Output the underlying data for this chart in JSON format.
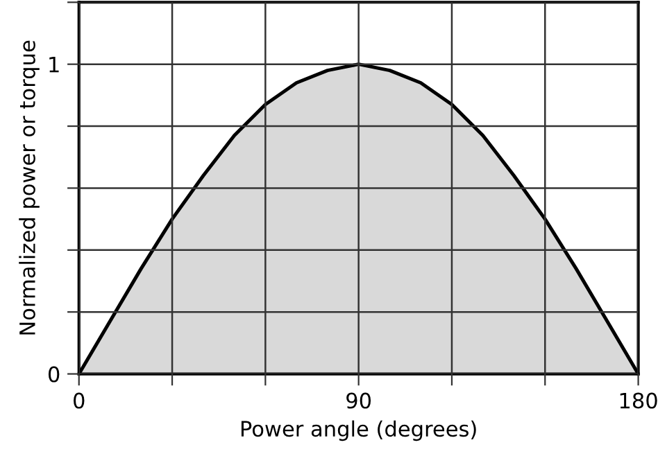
{
  "chart_data": {
    "type": "area",
    "xlabel": "Power angle (degrees)",
    "ylabel": "Normalized power or torque",
    "x": [
      0,
      10,
      20,
      30,
      40,
      50,
      60,
      70,
      80,
      90,
      100,
      110,
      120,
      130,
      140,
      150,
      160,
      170,
      180
    ],
    "series": [
      {
        "color": "#d9d9d9",
        "values": [
          0,
          0.17,
          0.34,
          0.5,
          0.64,
          0.77,
          0.87,
          0.94,
          0.98,
          1.0,
          0.98,
          0.94,
          0.87,
          0.77,
          0.64,
          0.5,
          0.34,
          0.17,
          0
        ]
      }
    ],
    "xlim": [
      0,
      180
    ],
    "ylim": [
      0,
      1.2
    ],
    "xticks": [
      0,
      {
        "value": 30,
        "label": null
      },
      {
        "value": 60,
        "label": null
      },
      90,
      {
        "value": 120,
        "label": null
      },
      {
        "value": 150,
        "label": null
      },
      180
    ],
    "yticks": [
      0,
      {
        "value": 0.2,
        "label": null
      },
      {
        "value": 0.4,
        "label": null
      },
      {
        "value": 0.6,
        "label": null
      },
      {
        "value": 0.8,
        "label": null
      },
      1,
      {
        "value": 1.2,
        "label": null
      }
    ],
    "grid": true
  }
}
